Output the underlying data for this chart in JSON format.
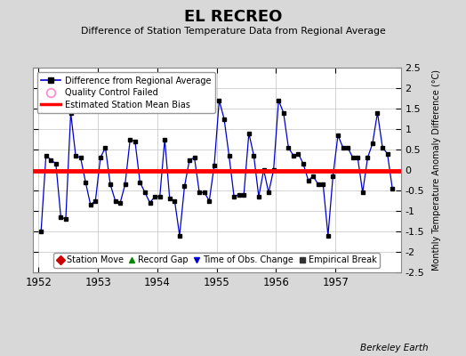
{
  "title": "EL RECREO",
  "subtitle": "Difference of Station Temperature Data from Regional Average",
  "ylabel": "Monthly Temperature Anomaly Difference (°C)",
  "xlabel_credit": "Berkeley Earth",
  "ylim": [
    -2.5,
    2.5
  ],
  "xlim_start": 1951.9,
  "xlim_end": 1958.1,
  "bias_value": -0.02,
  "background_color": "#d8d8d8",
  "plot_bg_color": "#ffffff",
  "line_color": "#0000cc",
  "marker_color": "#000000",
  "bias_color": "#ff0000",
  "yticks": [
    -2.5,
    -2.0,
    -1.5,
    -1.0,
    -0.5,
    0.0,
    0.5,
    1.0,
    1.5,
    2.0,
    2.5
  ],
  "xticks": [
    1952,
    1953,
    1954,
    1955,
    1956,
    1957
  ],
  "data_x": [
    1952.042,
    1952.125,
    1952.208,
    1952.292,
    1952.375,
    1952.458,
    1952.542,
    1952.625,
    1952.708,
    1952.792,
    1952.875,
    1952.958,
    1953.042,
    1953.125,
    1953.208,
    1953.292,
    1953.375,
    1953.458,
    1953.542,
    1953.625,
    1953.708,
    1953.792,
    1953.875,
    1953.958,
    1954.042,
    1954.125,
    1954.208,
    1954.292,
    1954.375,
    1954.458,
    1954.542,
    1954.625,
    1954.708,
    1954.792,
    1954.875,
    1954.958,
    1955.042,
    1955.125,
    1955.208,
    1955.292,
    1955.375,
    1955.458,
    1955.542,
    1955.625,
    1955.708,
    1955.792,
    1955.875,
    1955.958,
    1956.042,
    1956.125,
    1956.208,
    1956.292,
    1956.375,
    1956.458,
    1956.542,
    1956.625,
    1956.708,
    1956.792,
    1956.875,
    1956.958,
    1957.042,
    1957.125,
    1957.208,
    1957.292,
    1957.375,
    1957.458,
    1957.542,
    1957.625,
    1957.708,
    1957.792,
    1957.875,
    1957.958
  ],
  "data_y": [
    -1.5,
    0.35,
    0.25,
    0.15,
    -1.15,
    -1.2,
    1.4,
    0.35,
    0.3,
    -0.3,
    -0.85,
    -0.75,
    0.3,
    0.55,
    -0.35,
    -0.75,
    -0.8,
    -0.35,
    0.75,
    0.7,
    -0.3,
    -0.55,
    -0.8,
    -0.65,
    -0.65,
    0.75,
    -0.7,
    -0.75,
    -1.6,
    -0.4,
    0.25,
    0.3,
    -0.55,
    -0.55,
    -0.75,
    0.1,
    1.7,
    1.25,
    0.35,
    -0.65,
    -0.6,
    -0.6,
    0.9,
    0.35,
    -0.65,
    0.0,
    -0.55,
    0.0,
    1.7,
    1.4,
    0.55,
    0.35,
    0.4,
    0.15,
    -0.25,
    -0.15,
    -0.35,
    -0.35,
    -1.6,
    -0.15,
    0.85,
    0.55,
    0.55,
    0.3,
    0.3,
    -0.55,
    0.3,
    0.65,
    1.4,
    0.55,
    0.4,
    -0.45
  ],
  "leg1_labels": [
    "Difference from Regional Average",
    "Quality Control Failed",
    "Estimated Station Mean Bias"
  ],
  "leg2_labels": [
    "Station Move",
    "Record Gap",
    "Time of Obs. Change",
    "Empirical Break"
  ],
  "leg2_colors": [
    "#cc0000",
    "#008800",
    "#0000cc",
    "#333333"
  ],
  "leg2_markers": [
    "D",
    "^",
    "v",
    "s"
  ]
}
